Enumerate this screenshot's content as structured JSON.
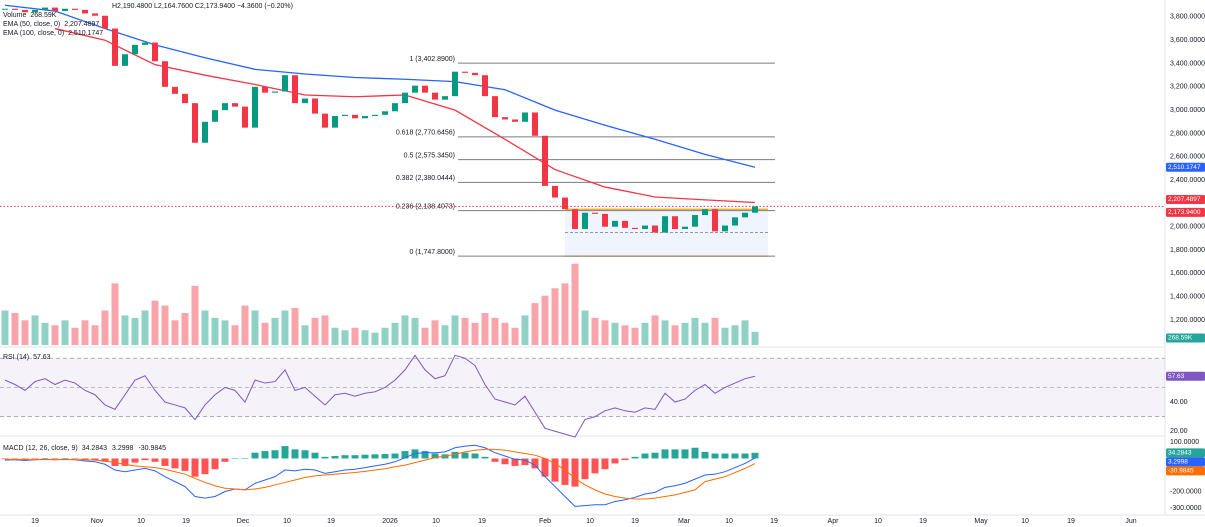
{
  "header": {
    "ohlc": "H2,190.4800 L2,164.7600 C2,173.9400 −4.3600 (−0.20%)"
  },
  "chart_data": {
    "type": "candlestick",
    "colors": {
      "up": "#089981",
      "down": "#f23645"
    },
    "close": [
      3870,
      3860,
      3840,
      3860,
      3880,
      3850,
      3870,
      3860,
      3830,
      3810,
      3700,
      3380,
      3480,
      3560,
      3580,
      3420,
      3200,
      3140,
      3060,
      2720,
      2900,
      3000,
      3060,
      3030,
      2850,
      3200,
      3150,
      3160,
      3300,
      3060,
      3100,
      2970,
      2850,
      2950,
      2960,
      2930,
      2950,
      2960,
      2990,
      3060,
      3150,
      3210,
      3150,
      3090,
      3120,
      3330,
      3320,
      3300,
      3120,
      2940,
      2920,
      2900,
      2980,
      2780,
      2350,
      2250,
      2150,
      1980,
      2120,
      2110,
      2000,
      2050,
      1990,
      1980,
      2010,
      1950,
      2090,
      1980,
      2000,
      2100,
      2150,
      1960,
      2010,
      2080,
      2120,
      2173.94
    ],
    "ylim": [
      985,
      3945
    ],
    "yticks": [
      {
        "value": 3800,
        "label": "3,800.0000"
      },
      {
        "value": 3600,
        "label": "3,600.0000"
      },
      {
        "value": 3400,
        "label": "3,400.0000"
      },
      {
        "value": 3200,
        "label": "3,200.0000"
      },
      {
        "value": 3000,
        "label": "3,000.0000"
      },
      {
        "value": 2800,
        "label": "2,800.0000"
      },
      {
        "value": 2600,
        "label": "2,600.0000"
      },
      {
        "value": 2400,
        "label": "2,400.0000"
      },
      {
        "value": 2000,
        "label": "2,000.0000"
      },
      {
        "value": 1800,
        "label": "1,800.0000"
      },
      {
        "value": 1600,
        "label": "1,600.0000"
      },
      {
        "value": 1400,
        "label": "1,400.0000"
      },
      {
        "value": 1200,
        "label": "1,200.0000"
      }
    ],
    "x_labels": [
      "19",
      "Nov",
      "10",
      "19",
      "Dec",
      "10",
      "19",
      "2026",
      "10",
      "19",
      "Feb",
      "10",
      "19",
      "Mar",
      "10",
      "19",
      "Apr",
      "10",
      "19",
      "May",
      "10",
      "19",
      "Jun"
    ],
    "last_price": {
      "value": 2173.94,
      "label": "2,173.9400"
    },
    "fib": [
      {
        "label": "1 (3,402.8900)",
        "value": 3402.89
      },
      {
        "label": "0.618 (2,770.6456)",
        "value": 2770.6456
      },
      {
        "label": "0.5 (2,575.3450)",
        "value": 2575.345
      },
      {
        "label": "0.382 (2,380.0444)",
        "value": 2380.0444
      },
      {
        "label": "0.236 (2,138.4073)",
        "value": 2138.4073
      },
      {
        "label": "0 (1,747.8000)",
        "value": 1747.8
      }
    ],
    "range_box": {
      "top": 2150,
      "mid": 1950,
      "bottom": 1747.8,
      "color": "#f7a600"
    },
    "ema": [
      {
        "name": "EMA (50, close, 0)",
        "color": "#f23645",
        "values": [
          null,
          3700,
          3600,
          3390,
          3300,
          3220,
          3130,
          3115,
          3130,
          3000,
          2750,
          2490,
          2340,
          2255,
          2230,
          2207.4897
        ],
        "last": {
          "value": 2207.4897,
          "label": "2,207.4897"
        }
      },
      {
        "name": "EMA (100, close, 0)",
        "color": "#2962ff",
        "values": [
          3900,
          3850,
          3700,
          3560,
          3450,
          3350,
          3310,
          3280,
          3265,
          3245,
          3175,
          3000,
          2870,
          2750,
          2620,
          2510.1747
        ],
        "last": {
          "value": 2510.1747,
          "label": "2,510.1747"
        }
      }
    ],
    "volume": {
      "name": "Volume",
      "up_color": "rgba(8,153,129,0.45)",
      "down_color": "rgba(242,54,69,0.45)",
      "vlim": [
        0,
        7000
      ],
      "last": {
        "value": 268.59,
        "label": "268.59K"
      },
      "values": [
        700,
        650,
        500,
        600,
        450,
        400,
        500,
        350,
        500,
        400,
        700,
        1250,
        600,
        550,
        700,
        900,
        800,
        500,
        650,
        1200,
        700,
        550,
        500,
        400,
        800,
        700,
        450,
        550,
        700,
        750,
        400,
        550,
        600,
        350,
        300,
        350,
        300,
        250,
        350,
        450,
        600,
        550,
        350,
        500,
        400,
        600,
        550,
        450,
        650,
        550,
        450,
        350,
        600,
        850,
        1000,
        1150,
        1250,
        1650,
        700,
        550,
        500,
        450,
        400,
        350,
        450,
        600,
        500,
        400,
        450,
        550,
        450,
        550,
        350,
        400,
        500,
        268.59
      ]
    },
    "rsi": {
      "name": "RSI (14)",
      "color": "#7e57c2",
      "ylim": [
        14,
        77
      ],
      "yticks": [
        {
          "value": 40,
          "label": "40.00"
        },
        {
          "value": 20,
          "label": "20.00"
        }
      ],
      "levels": [
        70,
        50,
        30
      ],
      "last": {
        "value": 57.63,
        "label": "57.63"
      },
      "values": [
        55,
        52,
        48,
        54,
        56,
        52,
        55,
        53,
        48,
        45,
        38,
        35,
        45,
        55,
        58,
        48,
        40,
        38,
        36,
        28,
        38,
        45,
        50,
        48,
        40,
        55,
        53,
        54,
        62,
        48,
        50,
        44,
        38,
        45,
        46,
        44,
        46,
        47,
        50,
        55,
        62,
        72,
        62,
        56,
        58,
        72,
        70,
        65,
        52,
        42,
        40,
        38,
        44,
        33,
        22,
        20,
        18,
        16,
        28,
        30,
        34,
        36,
        34,
        33,
        36,
        35,
        46,
        40,
        42,
        48,
        52,
        46,
        50,
        53,
        56,
        57.63
      ]
    },
    "macd": {
      "name": "MACD (12, 26, close, 9)",
      "ylim": [
        -342,
        130
      ],
      "yticks": [
        {
          "value": 100,
          "label": "100.0000"
        },
        {
          "value": -200,
          "label": "-200.0000"
        },
        {
          "value": -300,
          "label": "-300.0000"
        }
      ],
      "histogram": {
        "color": "#26a69a",
        "neg_color": "#ff5252",
        "last": {
          "value": 34.2843,
          "label": "34.2843"
        },
        "values": [
          -5,
          -2,
          -5,
          -1,
          2,
          -1,
          2,
          -1,
          -7,
          -10,
          -20,
          -45,
          -45,
          -25,
          -10,
          -20,
          -45,
          -60,
          -75,
          -110,
          -95,
          -65,
          -20,
          0,
          0,
          35,
          45,
          50,
          75,
          55,
          50,
          35,
          10,
          15,
          20,
          20,
          23,
          25,
          27,
          30,
          45,
          55,
          45,
          30,
          25,
          40,
          35,
          30,
          10,
          -20,
          -35,
          -45,
          -40,
          -60,
          -110,
          -140,
          -160,
          -170,
          -125,
          -90,
          -65,
          -30,
          -10,
          10,
          30,
          35,
          55,
          55,
          55,
          65,
          40,
          30,
          30,
          30,
          30,
          34.2843
        ]
      },
      "macd": {
        "color": "#2962ff",
        "last": {
          "value": 3.2998,
          "label": "3.2998"
        },
        "values": [
          -10,
          -8,
          -12,
          -8,
          -5,
          -8,
          -5,
          -8,
          -15,
          -20,
          -35,
          -70,
          -80,
          -70,
          -60,
          -75,
          -110,
          -140,
          -170,
          -230,
          -240,
          -230,
          -200,
          -185,
          -190,
          -150,
          -130,
          -110,
          -70,
          -75,
          -65,
          -70,
          -90,
          -80,
          -70,
          -65,
          -55,
          -45,
          -35,
          -20,
          5,
          30,
          35,
          35,
          40,
          65,
          75,
          80,
          65,
          35,
          15,
          -5,
          -10,
          -40,
          -110,
          -170,
          -230,
          -290,
          -285,
          -280,
          -280,
          -260,
          -250,
          -235,
          -215,
          -205,
          -175,
          -165,
          -150,
          -125,
          -100,
          -95,
          -80,
          -55,
          -30,
          3.2998
        ]
      },
      "signal": {
        "color": "#ff6d00",
        "last": {
          "value": -30.9845,
          "label": "-30.9845"
        },
        "values": [
          -5,
          -6,
          -7,
          -7,
          -7,
          -7,
          -7,
          -7,
          -8,
          -10,
          -15,
          -25,
          -35,
          -45,
          -50,
          -55,
          -65,
          -80,
          -95,
          -120,
          -145,
          -165,
          -180,
          -185,
          -190,
          -185,
          -175,
          -160,
          -145,
          -130,
          -115,
          -105,
          -100,
          -95,
          -90,
          -85,
          -78,
          -70,
          -62,
          -50,
          -40,
          -25,
          -10,
          5,
          15,
          25,
          40,
          50,
          55,
          55,
          50,
          40,
          30,
          20,
          0,
          -30,
          -70,
          -120,
          -160,
          -190,
          -215,
          -230,
          -240,
          -245,
          -245,
          -240,
          -230,
          -220,
          -205,
          -190,
          -140,
          -125,
          -110,
          -85,
          -60,
          -30.9845
        ]
      }
    }
  }
}
